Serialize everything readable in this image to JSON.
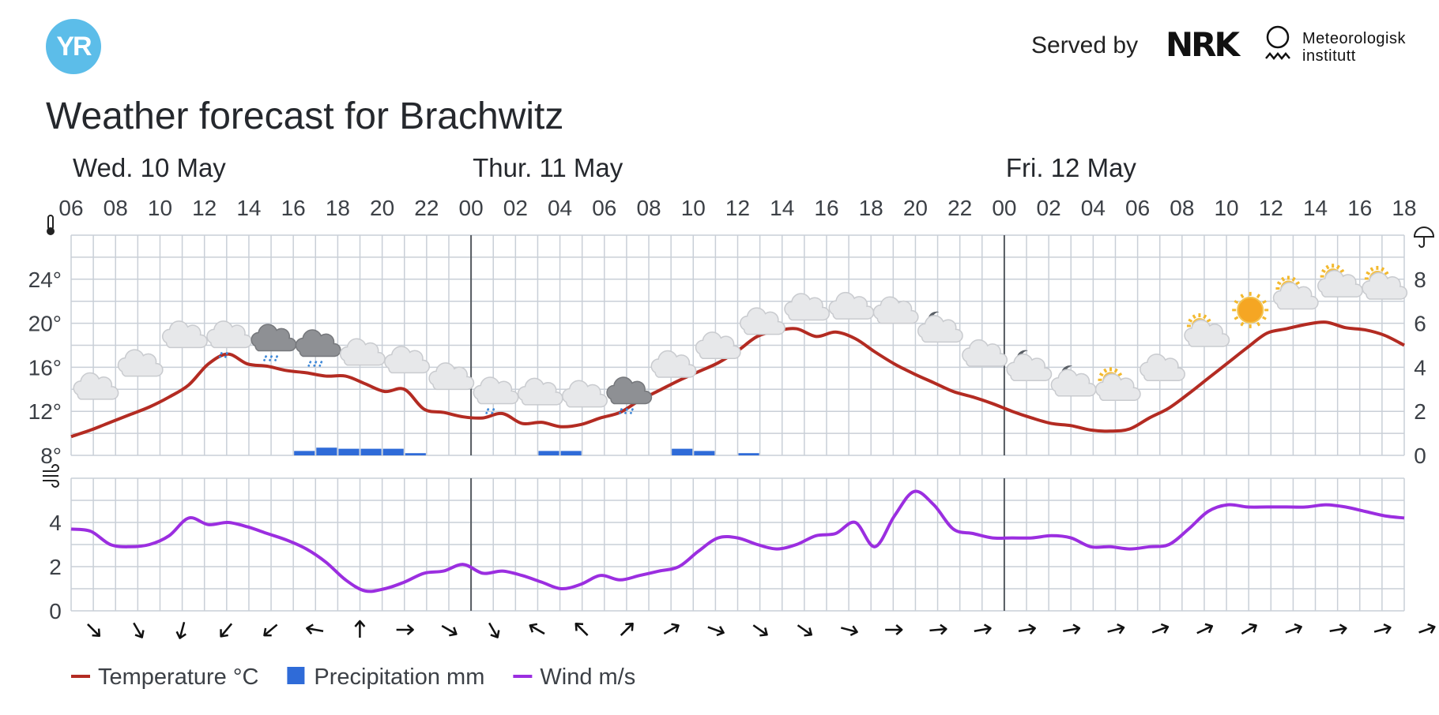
{
  "header": {
    "logo_text": "YR",
    "served_by": "Served by",
    "nrk_logo_text": "NRK",
    "met_name": "Meteorologisk\ninstitutt"
  },
  "page_title": "Weather forecast for Brachwitz",
  "icons": {
    "temperature": "thermometer-icon",
    "precipitation": "umbrella-icon",
    "wind": "wind-icon"
  },
  "colors": {
    "temperature": "#b32b22",
    "precipitation": "#2f6bd8",
    "wind": "#9b2ee0",
    "grid": "#c9cfd7",
    "day_divider": "#555a60"
  },
  "chart_data": {
    "type": "line",
    "days": [
      {
        "label": "Wed. 10 May",
        "start_hour_index": 0
      },
      {
        "label": "Thur. 11 May",
        "start_hour_index": 18
      },
      {
        "label": "Fri. 12 May",
        "start_hour_index": 42
      }
    ],
    "x_tick_labels": [
      "06",
      "08",
      "10",
      "12",
      "14",
      "16",
      "18",
      "20",
      "22",
      "00",
      "02",
      "04",
      "06",
      "08",
      "10",
      "12",
      "14",
      "16",
      "18",
      "20",
      "22",
      "00",
      "02",
      "04",
      "06",
      "08",
      "10",
      "12",
      "14",
      "16",
      "18"
    ],
    "temperature": {
      "name": "Temperature °C",
      "unit": "°C",
      "ylim": [
        8,
        28
      ],
      "yticks": [
        8,
        12,
        16,
        20,
        24
      ],
      "ytick_labels": [
        "8°",
        "12°",
        "16°",
        "20°",
        "24°"
      ],
      "values": [
        9.7,
        10.3,
        11.0,
        11.7,
        12.4,
        13.3,
        14.4,
        16.3,
        17.2,
        16.3,
        16.1,
        15.7,
        15.5,
        15.2,
        15.2,
        14.5,
        13.8,
        14.0,
        12.2,
        11.9,
        11.5,
        11.4,
        11.8,
        10.9,
        11.0,
        10.6,
        10.8,
        11.4,
        11.9,
        13.0,
        13.9,
        14.8,
        15.6,
        16.4,
        17.5,
        18.8,
        19.3,
        19.5,
        18.8,
        19.2,
        18.6,
        17.4,
        16.3,
        15.4,
        14.6,
        13.8,
        13.3,
        12.7,
        12.0,
        11.4,
        10.9,
        10.7,
        10.3,
        10.2,
        10.4,
        11.4,
        12.3,
        13.6,
        15.0,
        16.4,
        17.8,
        19.1,
        19.5,
        19.9,
        20.1,
        19.6,
        19.4,
        18.9,
        18.0
      ]
    },
    "precipitation": {
      "name": "Precipitation mm",
      "unit": "mm",
      "ylim": [
        0,
        10
      ],
      "yticks": [
        0,
        2,
        4,
        6,
        8
      ],
      "values": [
        0,
        0,
        0,
        0,
        0,
        0,
        0,
        0,
        0,
        0,
        0.2,
        0.35,
        0.3,
        0.3,
        0.3,
        0.1,
        0,
        0,
        0,
        0,
        0,
        0.2,
        0.2,
        0,
        0,
        0,
        0,
        0.3,
        0.2,
        0,
        0.1,
        0,
        0,
        0,
        0,
        0,
        0,
        0,
        0,
        0,
        0,
        0,
        0,
        0,
        0,
        0,
        0,
        0,
        0,
        0,
        0,
        0,
        0,
        0,
        0,
        0,
        0,
        0,
        0,
        0,
        0,
        0,
        0,
        0,
        0,
        0,
        0,
        0,
        0
      ]
    },
    "wind": {
      "name": "Wind m/s",
      "unit": "m/s",
      "ylim": [
        0,
        6
      ],
      "yticks": [
        0,
        2,
        4
      ],
      "values": [
        3.7,
        3.6,
        3.0,
        2.9,
        3.0,
        3.4,
        4.2,
        3.9,
        4.0,
        3.8,
        3.5,
        3.2,
        2.8,
        2.2,
        1.4,
        0.9,
        1.0,
        1.3,
        1.7,
        1.8,
        2.1,
        1.7,
        1.8,
        1.6,
        1.3,
        1.0,
        1.2,
        1.6,
        1.4,
        1.6,
        1.8,
        2.0,
        2.7,
        3.3,
        3.3,
        3.0,
        2.8,
        3.0,
        3.4,
        3.5,
        4.0,
        2.9,
        4.3,
        5.4,
        4.8,
        3.7,
        3.5,
        3.3,
        3.3,
        3.3,
        3.4,
        3.3,
        2.9,
        2.9,
        2.8,
        2.9,
        3.0,
        3.7,
        4.5,
        4.8,
        4.7,
        4.7,
        4.7,
        4.7,
        4.8,
        4.7,
        4.5,
        4.3,
        4.2
      ]
    },
    "weather_symbols": [
      {
        "hour_index": 1,
        "symbol": "cloudy",
        "temp": 14.1
      },
      {
        "hour_index": 3,
        "symbol": "cloudy",
        "temp": 16.2
      },
      {
        "hour_index": 5,
        "symbol": "cloudy",
        "temp": 18.8
      },
      {
        "hour_index": 7,
        "symbol": "light-rain",
        "temp": 18.8
      },
      {
        "hour_index": 9,
        "symbol": "rain",
        "temp": 18.5
      },
      {
        "hour_index": 11,
        "symbol": "rain",
        "temp": 18.0
      },
      {
        "hour_index": 13,
        "symbol": "cloudy",
        "temp": 17.2
      },
      {
        "hour_index": 15,
        "symbol": "cloudy",
        "temp": 16.5
      },
      {
        "hour_index": 17,
        "symbol": "cloudy",
        "temp": 15.0
      },
      {
        "hour_index": 19,
        "symbol": "light-rain",
        "temp": 13.7
      },
      {
        "hour_index": 21,
        "symbol": "cloudy",
        "temp": 13.6
      },
      {
        "hour_index": 23,
        "symbol": "cloudy",
        "temp": 13.4
      },
      {
        "hour_index": 25,
        "symbol": "rain",
        "temp": 13.7
      },
      {
        "hour_index": 27,
        "symbol": "cloudy",
        "temp": 16.1
      },
      {
        "hour_index": 29,
        "symbol": "cloudy",
        "temp": 17.8
      },
      {
        "hour_index": 31,
        "symbol": "cloudy",
        "temp": 20.0
      },
      {
        "hour_index": 33,
        "symbol": "cloudy",
        "temp": 21.3
      },
      {
        "hour_index": 35,
        "symbol": "cloudy",
        "temp": 21.4
      },
      {
        "hour_index": 37,
        "symbol": "cloudy",
        "temp": 21.0
      },
      {
        "hour_index": 39,
        "symbol": "partly-cloudy-night",
        "temp": 19.3
      },
      {
        "hour_index": 41,
        "symbol": "cloudy",
        "temp": 17.1
      },
      {
        "hour_index": 43,
        "symbol": "partly-cloudy-night",
        "temp": 15.8
      },
      {
        "hour_index": 45,
        "symbol": "partly-cloudy-night",
        "temp": 14.4
      },
      {
        "hour_index": 47,
        "symbol": "partly-cloudy-day",
        "temp": 14.0
      },
      {
        "hour_index": 49,
        "symbol": "cloudy",
        "temp": 15.8
      },
      {
        "hour_index": 51,
        "symbol": "partly-cloudy-day",
        "temp": 18.9
      },
      {
        "hour_index": 53,
        "symbol": "clear-day",
        "temp": 21.2
      },
      {
        "hour_index": 55,
        "symbol": "partly-cloudy-day",
        "temp": 22.3
      },
      {
        "hour_index": 57,
        "symbol": "partly-cloudy-day",
        "temp": 23.4
      },
      {
        "hour_index": 59,
        "symbol": "partly-cloudy-day",
        "temp": 23.2
      }
    ],
    "wind_direction_arrows_deg": [
      315,
      330,
      15,
      40,
      50,
      100,
      180,
      270,
      300,
      330,
      120,
      135,
      225,
      240,
      290,
      305,
      305,
      285,
      270,
      265,
      260,
      260,
      260,
      255,
      250,
      245,
      240,
      250,
      260,
      255,
      250
    ],
    "legend": [
      {
        "name": "Temperature °C",
        "key": "temperature"
      },
      {
        "name": "Precipitation mm",
        "key": "precipitation"
      },
      {
        "name": "Wind m/s",
        "key": "wind"
      }
    ]
  }
}
